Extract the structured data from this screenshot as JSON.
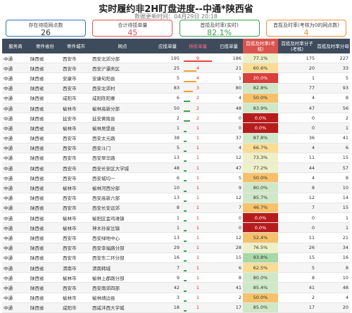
{
  "header": {
    "title": "实时履约非2H盯盘进度--中通*陕西省",
    "subtitle": "数据更新时间：04月29日 20:18"
  },
  "cards": [
    {
      "label": "存在待揽网点数",
      "value": "26"
    },
    {
      "label": "合计待揽单量",
      "value": "45"
    },
    {
      "label": "首揽及时率(实时)",
      "value": "82.1%"
    },
    {
      "label": "首揽及时率(考核为0的网点数)",
      "value": "4"
    }
  ],
  "table": {
    "columns": [
      "服务商",
      "寄件省份",
      "寄件城市",
      "网点",
      "应揽单量",
      "待揽单量",
      "已揽单量",
      "首揽及时率(考核)",
      "首揽及时率分子(考核)",
      "首揽及时率分母"
    ],
    "rows": [
      [
        "中通",
        "陕西省",
        "西安市",
        "西安北郊分部",
        195,
        9,
        186,
        "77.1%",
        175,
        227
      ],
      [
        "中通",
        "陕西省",
        "西安市",
        "西安浐灞务区",
        25,
        4,
        21,
        "60.6%",
        20,
        33
      ],
      [
        "中通",
        "陕西省",
        "安康市",
        "安康旬阳县",
        5,
        4,
        1,
        "20.0%",
        1,
        5
      ],
      [
        "中通",
        "陕西省",
        "西安市",
        "西安北郊村",
        83,
        3,
        80,
        "82.8%",
        77,
        93
      ],
      [
        "中通",
        "陕西省",
        "咸阳市",
        "咸阳陈阳寨",
        6,
        2,
        4,
        "50.0%",
        4,
        8
      ],
      [
        "中通",
        "陕西省",
        "榆林市",
        "榆林高新分部",
        50,
        2,
        48,
        "83.9%",
        47,
        56
      ],
      [
        "中通",
        "陕西省",
        "延安市",
        "延安黄陵县",
        2,
        2,
        0,
        "0.0%",
        0,
        2
      ],
      [
        "中通",
        "陕西省",
        "榆林市",
        "榆林吴堡县",
        1,
        1,
        0,
        "0.0%",
        0,
        1
      ],
      [
        "中通",
        "陕西省",
        "西安市",
        "西安太元路",
        38,
        1,
        37,
        "87.8%",
        36,
        41
      ],
      [
        "中通",
        "陕西省",
        "西安市",
        "西安斗门",
        5,
        1,
        4,
        "66.7%",
        4,
        6
      ],
      [
        "中通",
        "陕西省",
        "西安市",
        "西安翠华路",
        13,
        1,
        12,
        "73.3%",
        11,
        15
      ],
      [
        "中通",
        "陕西省",
        "西安市",
        "西安长安区大学城",
        48,
        1,
        47,
        "77.2%",
        44,
        57
      ],
      [
        "中通",
        "陕西省",
        "西安市",
        "西安城均一",
        6,
        1,
        5,
        "50.0%",
        4,
        8
      ],
      [
        "中通",
        "陕西省",
        "榆林市",
        "榆林河西分部",
        10,
        1,
        9,
        "80.0%",
        8,
        10
      ],
      [
        "中通",
        "陕西省",
        "西安市",
        "西安高新六部",
        13,
        1,
        12,
        "85.7%",
        12,
        14
      ],
      [
        "中通",
        "陕西省",
        "西安市",
        "西安长安远郊",
        8,
        1,
        7,
        "46.7%",
        7,
        15
      ],
      [
        "中通",
        "陕西省",
        "榆林市",
        "榆阳区金鸡滩镇",
        1,
        1,
        0,
        "0.0%",
        0,
        1
      ],
      [
        "中通",
        "陕西省",
        "榆林市",
        "神木孙家岔镇",
        1,
        1,
        0,
        "0.0%",
        0,
        1
      ],
      [
        "中通",
        "陕西省",
        "西安市",
        "西安绿地中心",
        13,
        1,
        12,
        "52.4%",
        11,
        21
      ],
      [
        "中通",
        "陕西省",
        "西安市",
        "西安幸福路分部",
        29,
        1,
        28,
        "76.5%",
        26,
        34
      ],
      [
        "中通",
        "陕西省",
        "西安市",
        "西安东二环分部",
        16,
        1,
        15,
        "93.8%",
        15,
        16
      ],
      [
        "中通",
        "陕西省",
        "渭南市",
        "渭南韩城",
        7,
        1,
        6,
        "62.5%",
        5,
        8
      ],
      [
        "中通",
        "陕西省",
        "榆林市",
        "榆林上郡路分部",
        9,
        1,
        8,
        "80.0%",
        8,
        10
      ],
      [
        "中通",
        "陕西省",
        "西安市",
        "西安南郊四部",
        42,
        1,
        41,
        "85.4%",
        41,
        48
      ],
      [
        "中通",
        "陕西省",
        "榆林市",
        "榆林靖边县",
        3,
        1,
        2,
        "50.0%",
        2,
        4
      ],
      [
        "中通",
        "陕西省",
        "咸阳市",
        "西咸沣西大学城",
        18,
        1,
        17,
        "85.0%",
        17,
        20
      ]
    ]
  }
}
